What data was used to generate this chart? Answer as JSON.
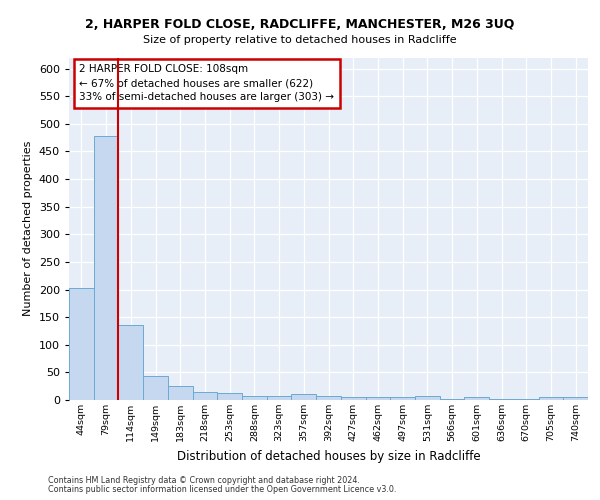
{
  "title1": "2, HARPER FOLD CLOSE, RADCLIFFE, MANCHESTER, M26 3UQ",
  "title2": "Size of property relative to detached houses in Radcliffe",
  "xlabel": "Distribution of detached houses by size in Radcliffe",
  "ylabel": "Number of detached properties",
  "footnote1": "Contains HM Land Registry data © Crown copyright and database right 2024.",
  "footnote2": "Contains public sector information licensed under the Open Government Licence v3.0.",
  "annotation_line1": "2 HARPER FOLD CLOSE: 108sqm",
  "annotation_line2": "← 67% of detached houses are smaller (622)",
  "annotation_line3": "33% of semi-detached houses are larger (303) →",
  "bar_labels": [
    "44sqm",
    "79sqm",
    "114sqm",
    "149sqm",
    "183sqm",
    "218sqm",
    "253sqm",
    "288sqm",
    "323sqm",
    "357sqm",
    "392sqm",
    "427sqm",
    "462sqm",
    "497sqm",
    "531sqm",
    "566sqm",
    "601sqm",
    "636sqm",
    "670sqm",
    "705sqm",
    "740sqm"
  ],
  "bar_values": [
    203,
    478,
    135,
    44,
    25,
    15,
    12,
    7,
    7,
    11,
    7,
    5,
    5,
    5,
    8,
    1,
    6,
    1,
    1,
    5,
    5
  ],
  "bar_color": "#c5d8f0",
  "bar_edge_color": "#6aaad4",
  "highlight_line_color": "#cc0000",
  "annotation_box_edge_color": "#cc0000",
  "background_color": "#e8eef8",
  "grid_color": "#ffffff",
  "ylim": [
    0,
    620
  ],
  "yticks": [
    0,
    50,
    100,
    150,
    200,
    250,
    300,
    350,
    400,
    450,
    500,
    550,
    600
  ]
}
